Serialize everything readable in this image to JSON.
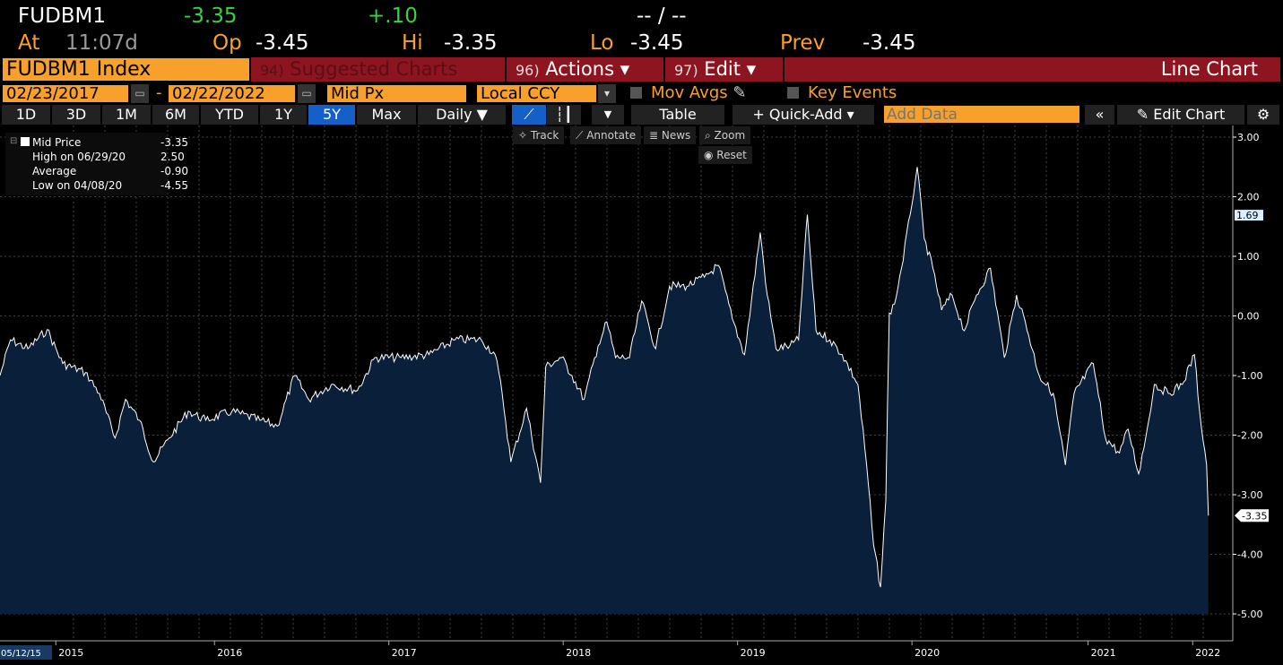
{
  "quote": {
    "ticker": "FUDBM1",
    "last": "-3.35",
    "change": "+.10",
    "bidask": "-- / --",
    "at_label": "At",
    "time": "11:07d",
    "open_label": "Op",
    "open": "-3.45",
    "high_label": "Hi",
    "high": "-3.35",
    "low_label": "Lo",
    "low": "-3.45",
    "prev_label": "Prev",
    "prev": "-3.45"
  },
  "menu": {
    "security": "FUDBM1 Index",
    "suggested_num": "94)",
    "suggested": "Suggested Charts",
    "actions_num": "96)",
    "actions": "Actions ▾",
    "edit_num": "97)",
    "edit": "Edit ▾",
    "chart_type": "Line Chart"
  },
  "settings": {
    "start_date": "02/23/2017",
    "dash": "-",
    "end_date": "02/22/2022",
    "field": "Mid Px",
    "currency": "Local CCY",
    "mov_avgs": "Mov Avgs",
    "key_events": "Key Events"
  },
  "toolbar": {
    "ranges": [
      "1D",
      "3D",
      "1M",
      "6M",
      "YTD",
      "1Y",
      "5Y",
      "Max"
    ],
    "selected": "5Y",
    "frequency": "Daily ▼",
    "table": "Table",
    "quick_add": "+ Quick-Add ▾",
    "add_data_placeholder": "Add Data",
    "edit_chart": "Edit Chart"
  },
  "chart_tools": {
    "track": "Track",
    "annotate": "Annotate",
    "news": "News",
    "zoom": "Zoom",
    "reset": "Reset"
  },
  "legend": [
    {
      "label": "Mid Price",
      "value": "-3.35"
    },
    {
      "label": "High on 06/29/20",
      "value": "2.50"
    },
    {
      "label": "Average",
      "value": "-0.90"
    },
    {
      "label": "Low on 04/08/20",
      "value": "-4.55"
    }
  ],
  "colors": {
    "accent": "#f7a12c",
    "menu_red": "#8c1520",
    "area": "#0a1f3a",
    "up": "#3dd13d"
  },
  "chart_data": {
    "type": "area",
    "title": "FUDBM1 Index Mid Px",
    "ylim": [
      -5,
      3
    ],
    "yticks": [
      "3.00",
      "2.00",
      "1.00",
      "0.00",
      "-1.00",
      "-2.00",
      "-3.00",
      "-4.00",
      "-5.00"
    ],
    "xlim": [
      2014.68,
      2021.75
    ],
    "xticks": [
      {
        "label": "2015",
        "x": 2015.0
      },
      {
        "label": "2016",
        "x": 2015.91
      },
      {
        "label": "2017",
        "x": 2016.91
      },
      {
        "label": "2018",
        "x": 2017.91
      },
      {
        "label": "2019",
        "x": 2018.91
      },
      {
        "label": "2020",
        "x": 2019.91
      },
      {
        "label": "2021",
        "x": 2020.92
      },
      {
        "label": "2022",
        "x": 2021.52
      }
    ],
    "start_label": "05/12/15",
    "markers": {
      "last": "-3.35",
      "high_marker": "1.69"
    },
    "x": [
      2014.68,
      2014.74,
      2014.84,
      2014.95,
      2015.04,
      2015.17,
      2015.25,
      2015.34,
      2015.4,
      2015.48,
      2015.56,
      2015.65,
      2015.76,
      2015.86,
      2016.01,
      2016.17,
      2016.27,
      2016.37,
      2016.45,
      2016.58,
      2016.73,
      2016.83,
      2016.98,
      2017.14,
      2017.29,
      2017.44,
      2017.52,
      2017.56,
      2017.61,
      2017.7,
      2017.78,
      2017.81,
      2017.9,
      2017.96,
      2018.03,
      2018.11,
      2018.16,
      2018.21,
      2018.29,
      2018.36,
      2018.44,
      2018.52,
      2018.62,
      2018.72,
      2018.8,
      2018.88,
      2018.95,
      2019.04,
      2019.08,
      2019.13,
      2019.21,
      2019.26,
      2019.31,
      2019.36,
      2019.44,
      2019.51,
      2019.6,
      2019.65,
      2019.69,
      2019.73,
      2019.76,
      2019.78,
      2019.81,
      2019.85,
      2019.9,
      2019.94,
      2019.98,
      2020.03,
      2020.08,
      2020.14,
      2020.21,
      2020.28,
      2020.36,
      2020.44,
      2020.51,
      2020.56,
      2020.64,
      2020.72,
      2020.79,
      2020.84,
      2020.95,
      2021.02,
      2021.1,
      2021.15,
      2021.21,
      2021.25,
      2021.3,
      2021.38,
      2021.46,
      2021.53,
      2021.56,
      2021.6,
      2021.61
    ],
    "values": [
      -1.0,
      -0.4,
      -0.55,
      -0.23,
      -0.8,
      -0.95,
      -1.3,
      -2.05,
      -1.4,
      -1.75,
      -2.45,
      -2.05,
      -1.6,
      -1.75,
      -1.6,
      -1.75,
      -1.85,
      -1.0,
      -1.4,
      -1.15,
      -1.25,
      -0.7,
      -0.7,
      -0.65,
      -0.4,
      -0.4,
      -0.65,
      -1.3,
      -2.45,
      -1.55,
      -2.8,
      -0.85,
      -0.7,
      -1.0,
      -1.4,
      -0.5,
      -0.1,
      -0.7,
      -0.7,
      0.25,
      -0.55,
      0.5,
      0.5,
      0.65,
      0.85,
      -0.05,
      -0.65,
      1.4,
      0.35,
      -0.55,
      -0.5,
      -0.4,
      1.7,
      -0.25,
      -0.4,
      -0.65,
      -1.15,
      -2.5,
      -3.85,
      -4.55,
      -3.1,
      0.05,
      0.2,
      0.8,
      1.7,
      2.5,
      1.3,
      0.8,
      0.1,
      0.35,
      -0.25,
      0.35,
      0.8,
      -0.7,
      0.35,
      -0.1,
      -1.0,
      -1.3,
      -2.5,
      -1.3,
      -0.8,
      -2.05,
      -2.3,
      -1.9,
      -2.65,
      -2.05,
      -1.15,
      -1.3,
      -1.15,
      -0.65,
      -1.6,
      -2.5,
      -3.35
    ]
  }
}
